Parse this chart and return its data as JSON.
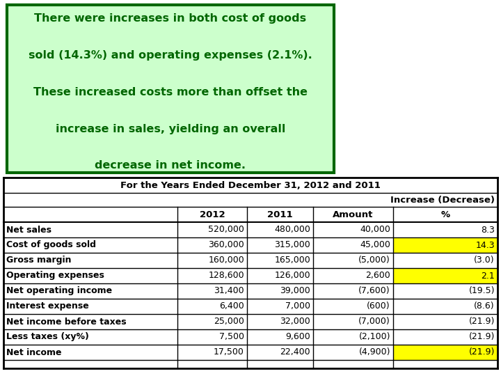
{
  "title_text": "For the Years Ended December 31, 2012 and 2011",
  "callout_lines": [
    "There were increases in both cost of goods",
    "sold (14.3%) and operating expenses (2.1%).",
    "These increased costs more than offset the",
    "increase in sales, yielding an overall",
    "decrease in net income."
  ],
  "callout_bg": "#ccffcc",
  "callout_border": "#006600",
  "rows": [
    [
      "Net sales",
      "520,000",
      "480,000",
      "40,000",
      "8.3",
      false
    ],
    [
      "Cost of goods sold",
      "360,000",
      "315,000",
      "45,000",
      "14.3",
      true
    ],
    [
      "Gross margin",
      "160,000",
      "165,000",
      "(5,000)",
      "(3.0)",
      false
    ],
    [
      "Operating expenses",
      "128,600",
      "126,000",
      "2,600",
      "2.1",
      true
    ],
    [
      "Net operating income",
      "31,400",
      "39,000",
      "(7,600)",
      "(19.5)",
      false
    ],
    [
      "Interest expense",
      "6,400",
      "7,000",
      "(600)",
      "(8.6)",
      false
    ],
    [
      "Net income before taxes",
      "25,000",
      "32,000",
      "(7,000)",
      "(21.9)",
      false
    ],
    [
      "Less taxes (xy%)",
      "7,500",
      "9,600",
      "(2,100)",
      "(21.9)",
      false
    ],
    [
      "Net income",
      "17,500",
      "22,400",
      "(4,900)",
      "(21.9)",
      true
    ]
  ],
  "highlight_color": "#ffff00",
  "table_bg": "#ffffff",
  "border_color": "#000000",
  "text_color": "#000000",
  "dark_green": "#006600",
  "callout_text_color": "#006600",
  "callout_font_size": 11.5,
  "table_font_size": 9.0,
  "title_font_size": 9.5
}
